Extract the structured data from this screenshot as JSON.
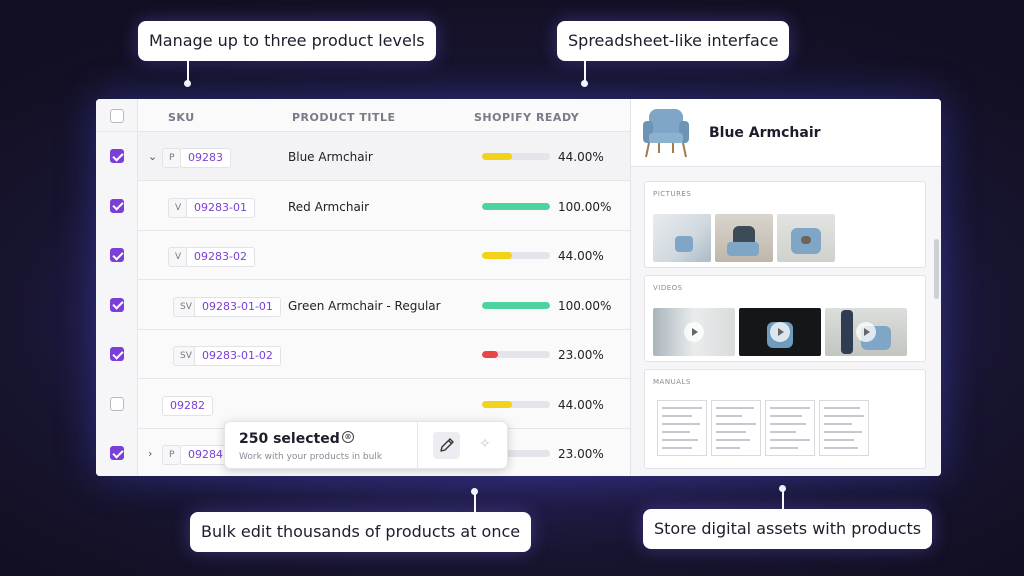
{
  "callouts": {
    "levels": "Manage up to three product levels",
    "spreadsheet": "Spreadsheet-like interface",
    "bulk": "Bulk edit thousands of products at once",
    "assets": "Store digital assets with products"
  },
  "table": {
    "headers": {
      "sku": "SKU",
      "title": "PRODUCT TITLE",
      "ready": "SHOPIFY READY"
    },
    "rows": [
      {
        "checked": true,
        "chevron": "⌄",
        "level": "P",
        "sku": "09283",
        "title": "Blue Armchair",
        "ready": "44.00%",
        "progress": 0.44,
        "color": "#f2d21b"
      },
      {
        "checked": true,
        "chevron": "",
        "level": "V",
        "sku": "09283-01",
        "title": "Red Armchair",
        "ready": "100.00%",
        "progress": 1.0,
        "color": "#4cd39e"
      },
      {
        "checked": true,
        "chevron": "",
        "level": "V",
        "sku": "09283-02",
        "title": "",
        "ready": "44.00%",
        "progress": 0.44,
        "color": "#f2d21b"
      },
      {
        "checked": true,
        "chevron": "",
        "level": "SV",
        "sku": "09283-01-01",
        "title": "Green Armchair - Regular",
        "ready": "100.00%",
        "progress": 1.0,
        "color": "#4cd39e"
      },
      {
        "checked": true,
        "chevron": "",
        "level": "SV",
        "sku": "09283-01-02",
        "title": "",
        "ready": "23.00%",
        "progress": 0.23,
        "color": "#e84545"
      },
      {
        "checked": false,
        "chevron": "",
        "level": "",
        "sku": "09282",
        "title": "",
        "ready": "44.00%",
        "progress": 0.44,
        "color": "#f2d21b"
      },
      {
        "checked": true,
        "chevron": "›",
        "level": "P",
        "sku": "09284",
        "title": "",
        "ready": "23.00%",
        "progress": 0.23,
        "color": "#e84545"
      }
    ]
  },
  "bulk": {
    "count": "250 selected",
    "subtitle": "Work with your products in bulk",
    "close_icon": "⊗",
    "ai_icon": "✧"
  },
  "panel": {
    "product_title": "Blue Armchair",
    "pictures_label": "PICTURES",
    "videos_label": "VIDEOS",
    "manuals_label": "MANUALS"
  }
}
